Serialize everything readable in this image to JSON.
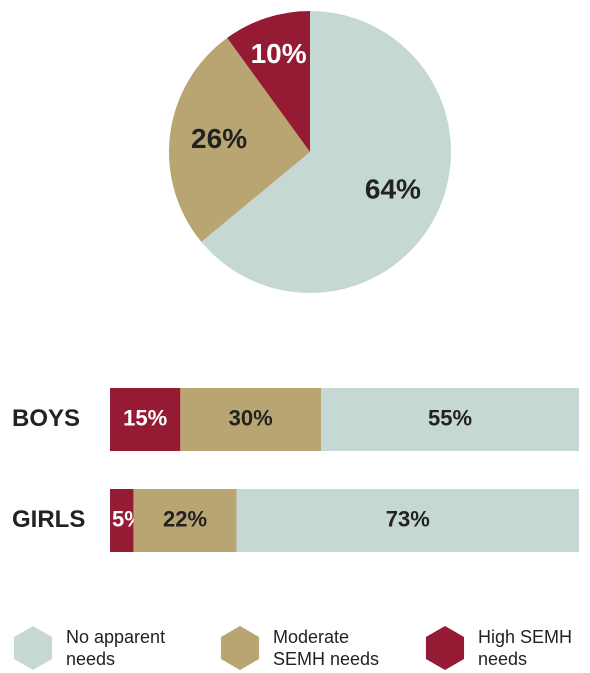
{
  "chart_data": [
    {
      "type": "pie",
      "values": [
        64,
        26,
        10
      ],
      "value_labels": [
        "64%",
        "26%",
        "10%"
      ],
      "colors": [
        "#c6d8d3",
        "#b9a572",
        "#951a33"
      ]
    },
    {
      "type": "bar",
      "orientation": "horizontal",
      "stacked": true,
      "categories": [
        "BOYS",
        "GIRLS"
      ],
      "series": [
        {
          "name": "No apparent needs",
          "color": "#c6d8d3",
          "values": [
            55,
            73
          ],
          "value_labels": [
            "55%",
            "73%"
          ]
        },
        {
          "name": "Moderate SEMH needs",
          "color": "#b9a572",
          "values": [
            30,
            22
          ],
          "value_labels": [
            "30%",
            "22%"
          ]
        },
        {
          "name": "High SEMH needs",
          "color": "#951a33",
          "values": [
            15,
            5
          ],
          "value_labels": [
            "15%",
            "5%"
          ]
        }
      ]
    }
  ]
}
